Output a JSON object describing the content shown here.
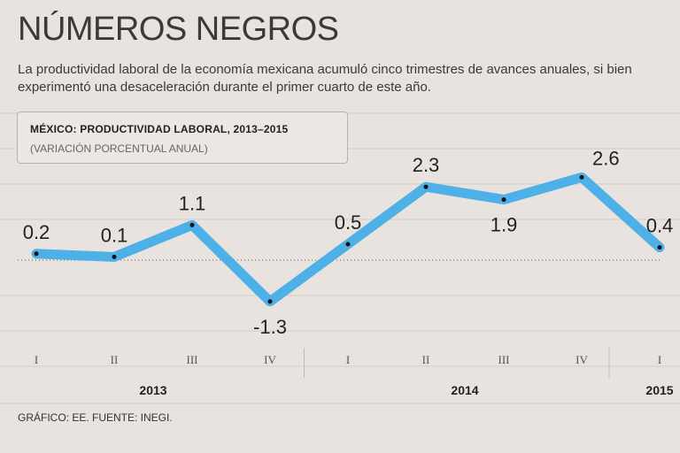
{
  "header": {
    "title": "NÚMEROS NEGROS",
    "subtitle": "La productividad laboral de la economía mexicana acumuló cinco trimestres de avances anuales, si bien experimentó una desaceleración durante el primer cuarto de este año."
  },
  "colors": {
    "line": "#4db1e8",
    "background": "#e8e3de",
    "grid": "#d4cec8"
  },
  "chart_data": {
    "type": "line",
    "title": "MÉXICO: PRODUCTIVIDAD LABORAL, 2013–2015",
    "subtitle": "(VARIACIÓN PORCENTUAL ANUAL)",
    "categories": [
      "I",
      "II",
      "III",
      "IV",
      "I",
      "II",
      "III",
      "IV",
      "I"
    ],
    "years": [
      {
        "label": "2013",
        "start": 0,
        "end": 3
      },
      {
        "label": "2014",
        "start": 4,
        "end": 7
      },
      {
        "label": "2015",
        "start": 8,
        "end": 8
      }
    ],
    "series": [
      {
        "name": "Productividad laboral",
        "values": [
          0.2,
          0.1,
          1.1,
          -1.3,
          0.5,
          2.3,
          1.9,
          2.6,
          0.4
        ]
      }
    ],
    "data_labels": [
      "0.2",
      "0.1",
      "1.1",
      "-1.3",
      "0.5",
      "2.3",
      "1.9",
      "2.6",
      "0.4"
    ],
    "ylim": [
      -2.0,
      3.0
    ],
    "grid": true,
    "xlabel": "",
    "ylabel": ""
  },
  "footer": {
    "source": "GRÁFICO: EE. FUENTE:  INEGI."
  }
}
